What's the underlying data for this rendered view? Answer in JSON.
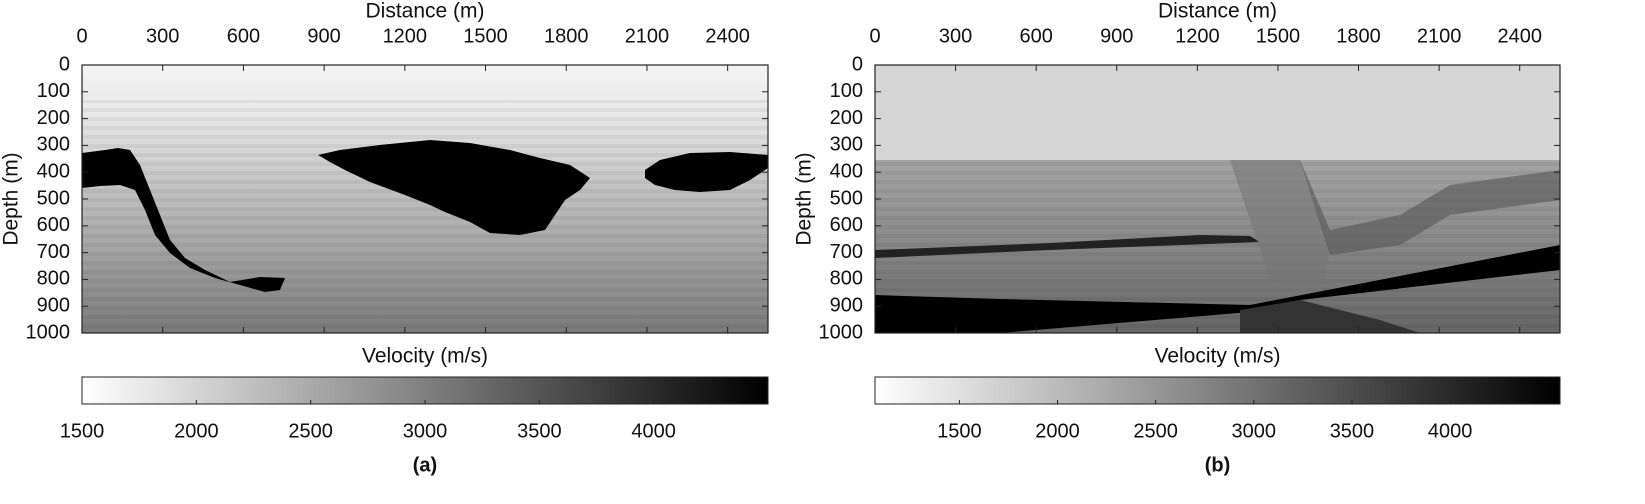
{
  "chart_data": [
    {
      "type": "heatmap",
      "caption": "(a)",
      "x_label": "Distance (m)",
      "y_label": "Depth (m)",
      "xlim": [
        0,
        2550
      ],
      "xticks": [
        0,
        300,
        600,
        900,
        1200,
        1500,
        1800,
        2100,
        2400
      ],
      "ylim": [
        0,
        1000
      ],
      "yticks": [
        0,
        100,
        200,
        300,
        400,
        500,
        600,
        700,
        800,
        900,
        1000
      ],
      "y_inverted": true,
      "colormap": "gray_r",
      "colorbar": {
        "label": "Velocity (m/s)",
        "lim": [
          1500,
          4500
        ],
        "ticks": [
          1500,
          2000,
          2500,
          3000,
          3500,
          4000
        ]
      }
    },
    {
      "type": "heatmap",
      "caption": "(b)",
      "x_label": "Distance (m)",
      "y_label": "Depth (m)",
      "xlim": [
        0,
        2550
      ],
      "xticks": [
        0,
        300,
        600,
        900,
        1200,
        1500,
        1800,
        2100,
        2400
      ],
      "ylim": [
        0,
        1000
      ],
      "yticks": [
        0,
        100,
        200,
        300,
        400,
        500,
        600,
        700,
        800,
        900,
        1000
      ],
      "y_inverted": true,
      "colormap": "gray_r",
      "colorbar": {
        "label": "Velocity (m/s)",
        "lim": [
          1070,
          4560
        ],
        "ticks": [
          1500,
          2000,
          2500,
          3000,
          3500,
          4000
        ]
      }
    }
  ]
}
